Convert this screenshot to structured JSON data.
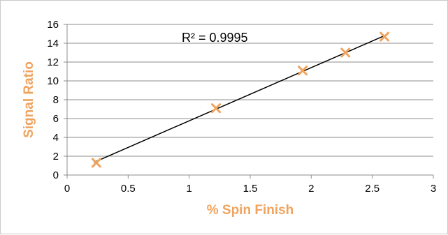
{
  "chart_data": {
    "type": "scatter",
    "title": "",
    "xlabel": "% Spin Finish",
    "ylabel": "Signal Ratio",
    "xlim": [
      0,
      3
    ],
    "ylim": [
      0,
      16
    ],
    "x_ticks": [
      0,
      0.5,
      1,
      1.5,
      2,
      2.5,
      3
    ],
    "x_tick_labels": [
      "0",
      "0.5",
      "1",
      "1.5",
      "2",
      "2.5",
      "3"
    ],
    "y_ticks": [
      0,
      2,
      4,
      6,
      8,
      10,
      12,
      14,
      16
    ],
    "y_tick_labels": [
      "0",
      "2",
      "4",
      "6",
      "8",
      "10",
      "12",
      "14",
      "16"
    ],
    "grid": "horizontal",
    "legend": "none",
    "series": [
      {
        "marker": "x",
        "color": "#f0a35e",
        "points": [
          {
            "x": 0.24,
            "y": 1.3
          },
          {
            "x": 1.22,
            "y": 7.1
          },
          {
            "x": 1.93,
            "y": 11.1
          },
          {
            "x": 2.28,
            "y": 13.0
          },
          {
            "x": 2.6,
            "y": 14.7
          }
        ]
      }
    ],
    "trendline": {
      "type": "linear",
      "color": "#000000",
      "from": {
        "x": 0.22,
        "y": 1.35
      },
      "to": {
        "x": 2.6,
        "y": 14.8
      }
    },
    "annotation": "R² = 0.9995",
    "axis_title_color": "#f0a35e",
    "gridline_color": "#8c8c8c"
  }
}
